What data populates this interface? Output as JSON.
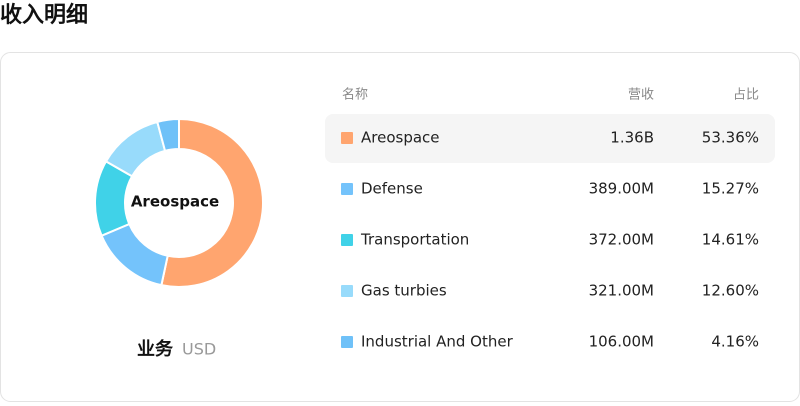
{
  "header": {
    "title": "收入明细"
  },
  "chart_data": {
    "type": "pie",
    "categories": [
      "Areospace",
      "Defense",
      "Transportation",
      "Gas turbies",
      "Industrial And Other"
    ],
    "values": [
      53.36,
      15.27,
      14.61,
      12.6,
      4.16
    ],
    "value_labels": [
      "53.36%",
      "15.27%",
      "14.61%",
      "12.60%",
      "4.16%"
    ],
    "colors": [
      "#ffa56f",
      "#74c3fb",
      "#40d2e8",
      "#98dbfb",
      "#6fc1f8"
    ]
  },
  "footer": {
    "label": "业务",
    "unit": "USD"
  },
  "table": {
    "columns": [
      "名称",
      "营收",
      "占比"
    ],
    "revenue": [
      "1.36B",
      "389.00M",
      "372.00M",
      "321.00M",
      "106.00M"
    ]
  }
}
